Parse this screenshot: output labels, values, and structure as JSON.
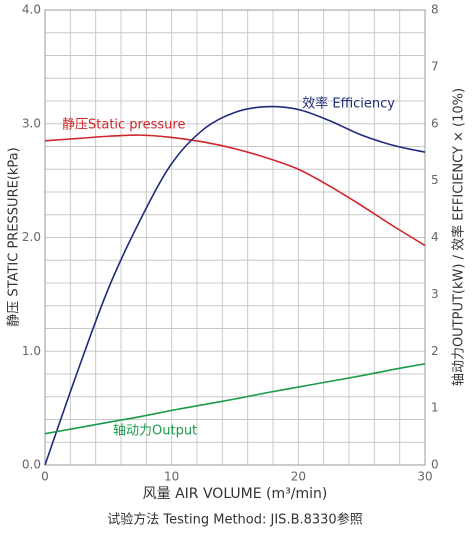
{
  "chart_data": {
    "type": "line",
    "x_label": "风量 AIR VOLUME (m³/min)",
    "y_label": "静压 STATIC PRESSURE(kPa)",
    "y2_label": "轴动力OUTPUT(kW) / 效率 EFFICIENCY × (10%)",
    "footnote": "试验方法 Testing Method: JIS.B.8330参照",
    "x": [
      0,
      2.5,
      5,
      7.5,
      10,
      12.5,
      15,
      17.5,
      20,
      22.5,
      25,
      27.5,
      30
    ],
    "series": [
      {
        "name": "静压Static pressure",
        "color": "#d0262b",
        "values": [
          2.85,
          2.87,
          2.89,
          2.9,
          2.88,
          2.84,
          2.78,
          2.7,
          2.6,
          2.45,
          2.28,
          2.1,
          1.93
        ]
      },
      {
        "name": "效率 Efficiency",
        "color": "#1f2a7a",
        "axis": "y2",
        "values": [
          0,
          1.6,
          3.1,
          4.3,
          5.3,
          5.9,
          6.2,
          6.3,
          6.25,
          6.05,
          5.8,
          5.62,
          5.5
        ]
      },
      {
        "name": "轴动力Output",
        "color": "#1a9a4a",
        "axis": "y2",
        "values": [
          0.55,
          0.65,
          0.75,
          0.85,
          0.96,
          1.06,
          1.16,
          1.27,
          1.37,
          1.47,
          1.57,
          1.68,
          1.78
        ]
      }
    ],
    "xlim": [
      0,
      30
    ],
    "xticks": [
      0,
      10,
      20,
      30
    ],
    "ylim": [
      0,
      4
    ],
    "yticks": [
      {
        "value": 0,
        "label": "0.0"
      },
      {
        "value": 1,
        "label": "1.0"
      },
      {
        "value": 2,
        "label": "2.0"
      },
      {
        "value": 3,
        "label": "3.0"
      },
      {
        "value": 4,
        "label": "4.0"
      }
    ],
    "y2lim": [
      0,
      8
    ],
    "y2ticks": [
      0,
      1,
      2,
      3,
      4,
      5,
      6,
      7,
      8
    ],
    "xgrid": [
      0,
      2,
      4,
      6,
      8,
      10,
      12,
      14,
      16,
      18,
      20,
      22,
      24,
      26,
      28,
      30
    ],
    "ygrid": [
      0,
      0.2,
      0.4,
      0.6,
      0.8,
      1,
      1.2,
      1.4,
      1.6,
      1.8,
      2,
      2.2,
      2.4,
      2.6,
      2.8,
      3,
      3.2,
      3.4,
      3.6,
      3.8,
      4
    ],
    "grid": true
  }
}
